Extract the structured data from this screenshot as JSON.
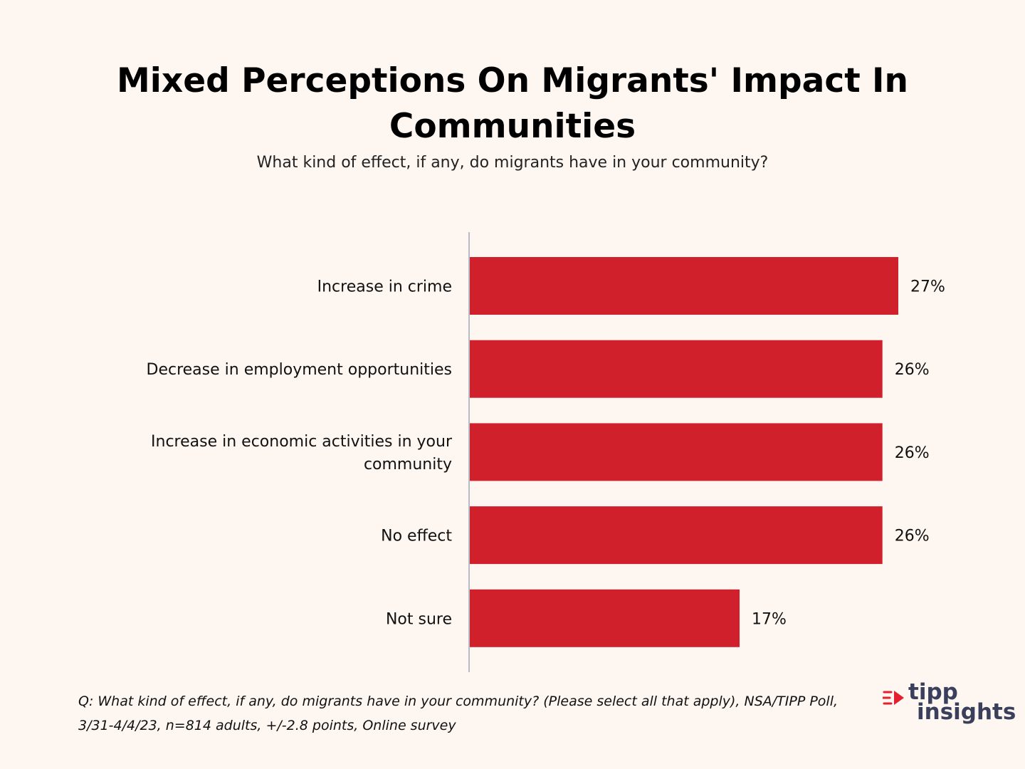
{
  "header": {
    "title": "Mixed Perceptions On Migrants' Impact In\nCommunities",
    "subtitle": "What kind of effect, if any, do migrants have in your community?"
  },
  "chart_data": {
    "type": "bar",
    "orientation": "horizontal",
    "categories": [
      "Increase in crime",
      "Decrease in employment opportunities",
      "Increase in economic activities in your community",
      "No effect",
      "Not sure"
    ],
    "category_label_lines": [
      [
        "Increase in crime"
      ],
      [
        "Decrease in employment opportunities"
      ],
      [
        "Increase in economic activities in your",
        "community"
      ],
      [
        "No effect"
      ],
      [
        "Not sure"
      ]
    ],
    "values": [
      27,
      26,
      26,
      26,
      17
    ],
    "value_labels": [
      "27%",
      "26%",
      "26%",
      "26%",
      "17%"
    ],
    "unit": "%",
    "xlim": [
      0,
      30
    ],
    "grid": false,
    "bar_color": "#cf202c",
    "axis_color": "#b8bcc6"
  },
  "footnote": {
    "line1": "Q: What kind of effect, if any, do migrants have in your community? (Please select all that apply), NSA/TIPP Poll,",
    "line2": "3/31-4/4/23, n=814 adults, +/-2.8 points, Online survey"
  },
  "logo": {
    "line1": "tipp",
    "line2": "insights",
    "mark_color": "#e4202e",
    "text_color": "#3a3f5c"
  }
}
